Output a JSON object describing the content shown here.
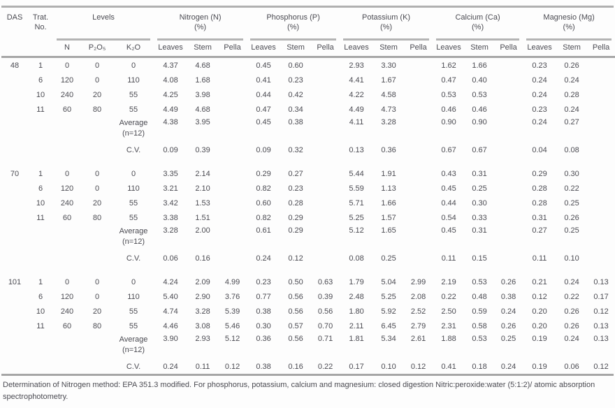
{
  "table": {
    "header": {
      "das": "DAS",
      "trat_line1": "Trat.",
      "trat_line2": "No.",
      "groups": [
        {
          "label": "Levels",
          "pct": "",
          "subs": [
            "N",
            "P₂O₅",
            "K₂O"
          ]
        },
        {
          "label": "Nitrogen (N)",
          "pct": "(%)",
          "subs": [
            "Leaves",
            "Stem",
            "Pella"
          ]
        },
        {
          "label": "Phosphorus (P)",
          "pct": "(%)",
          "subs": [
            "Leaves",
            "Stem",
            "Pella"
          ]
        },
        {
          "label": "Potassium (K)",
          "pct": "(%)",
          "subs": [
            "Leaves",
            "Stem",
            "Pella"
          ]
        },
        {
          "label": "Calcium (Ca)",
          "pct": "(%)",
          "subs": [
            "Leaves",
            "Stem",
            "Pella"
          ]
        },
        {
          "label": "Magnesio (Mg)",
          "pct": "(%)",
          "subs": [
            "Leaves",
            "Stem",
            "Pella"
          ]
        }
      ]
    },
    "sections": [
      {
        "das": "48",
        "rows": [
          {
            "trat": "1",
            "levels": [
              "0",
              "0",
              "0"
            ],
            "values": [
              "4.37",
              "4.68",
              "",
              "0.45",
              "0.60",
              "",
              "2.93",
              "3.30",
              "",
              "1.62",
              "1.66",
              "",
              "0.23",
              "0.26",
              ""
            ]
          },
          {
            "trat": "6",
            "levels": [
              "120",
              "0",
              "110"
            ],
            "values": [
              "4.08",
              "1.68",
              "",
              "0.41",
              "0.23",
              "",
              "4.41",
              "1.67",
              "",
              "0.47",
              "0.40",
              "",
              "0.24",
              "0.24",
              ""
            ]
          },
          {
            "trat": "10",
            "levels": [
              "240",
              "20",
              "55"
            ],
            "values": [
              "4.25",
              "3.98",
              "",
              "0.44",
              "0.42",
              "",
              "4.22",
              "4.58",
              "",
              "0.53",
              "0.53",
              "",
              "0.24",
              "0.28",
              ""
            ]
          },
          {
            "trat": "11",
            "levels": [
              "60",
              "80",
              "55"
            ],
            "values": [
              "4.49",
              "4.68",
              "",
              "0.47",
              "0.34",
              "",
              "4.49",
              "4.73",
              "",
              "0.46",
              "0.46",
              "",
              "0.23",
              "0.24",
              ""
            ]
          }
        ],
        "average_label": "Average",
        "average_sub": "(n=12)",
        "average": [
          "4.38",
          "3.95",
          "",
          "0.45",
          "0.38",
          "",
          "4.11",
          "3.28",
          "",
          "0.90",
          "0.90",
          "",
          "0.24",
          "0.27",
          ""
        ],
        "cv_label": "C.V.",
        "cv": [
          "0.09",
          "0.39",
          "",
          "0.09",
          "0.32",
          "",
          "0.13",
          "0.36",
          "",
          "0.67",
          "0.67",
          "",
          "0.04",
          "0.08",
          ""
        ]
      },
      {
        "das": "70",
        "rows": [
          {
            "trat": "1",
            "levels": [
              "0",
              "0",
              "0"
            ],
            "values": [
              "3.35",
              "2.14",
              "",
              "0.29",
              "0.27",
              "",
              "5.44",
              "1.91",
              "",
              "0.43",
              "0.31",
              "",
              "0.29",
              "0.30",
              ""
            ]
          },
          {
            "trat": "6",
            "levels": [
              "120",
              "0",
              "110"
            ],
            "values": [
              "3.21",
              "2.10",
              "",
              "0.82",
              "0.23",
              "",
              "5.59",
              "1.13",
              "",
              "0.45",
              "0.25",
              "",
              "0.28",
              "0.22",
              ""
            ]
          },
          {
            "trat": "10",
            "levels": [
              "240",
              "20",
              "55"
            ],
            "values": [
              "3.42",
              "1.53",
              "",
              "0.60",
              "0.28",
              "",
              "5.71",
              "1.66",
              "",
              "0.44",
              "0.30",
              "",
              "0.28",
              "0.25",
              ""
            ]
          },
          {
            "trat": "11",
            "levels": [
              "60",
              "80",
              "55"
            ],
            "values": [
              "3.38",
              "1.51",
              "",
              "0.82",
              "0.29",
              "",
              "5.25",
              "1.57",
              "",
              "0.54",
              "0.33",
              "",
              "0.31",
              "0.26",
              ""
            ]
          }
        ],
        "average_label": "Average",
        "average_sub": "(n=12)",
        "average": [
          "3.28",
          "2.00",
          "",
          "0.61",
          "0.29",
          "",
          "5.12",
          "1.65",
          "",
          "0.45",
          "0.31",
          "",
          "0.27",
          "0.25",
          ""
        ],
        "cv_label": "C.V.",
        "cv": [
          "0.06",
          "0.16",
          "",
          "0.24",
          "0.12",
          "",
          "0.08",
          "0.25",
          "",
          "0.11",
          "0.15",
          "",
          "0.11",
          "0.10",
          ""
        ]
      },
      {
        "das": "101",
        "rows": [
          {
            "trat": "1",
            "levels": [
              "0",
              "0",
              "0"
            ],
            "values": [
              "4.24",
              "2.09",
              "4.99",
              "0.23",
              "0.50",
              "0.63",
              "1.79",
              "5.04",
              "2.99",
              "2.19",
              "0.53",
              "0.26",
              "0.21",
              "0.24",
              "0.13"
            ]
          },
          {
            "trat": "6",
            "levels": [
              "120",
              "0",
              "110"
            ],
            "values": [
              "5.40",
              "2.90",
              "3.76",
              "0.77",
              "0.56",
              "0.39",
              "2.48",
              "5.25",
              "2.08",
              "0.22",
              "0.48",
              "0.38",
              "0.12",
              "0.22",
              "0.17"
            ]
          },
          {
            "trat": "10",
            "levels": [
              "240",
              "20",
              "55"
            ],
            "values": [
              "4.74",
              "3.28",
              "5.39",
              "0.38",
              "0.56",
              "0.56",
              "1.80",
              "5.92",
              "2.52",
              "2.50",
              "0.59",
              "0.24",
              "0.20",
              "0.26",
              "0.12"
            ]
          },
          {
            "trat": "11",
            "levels": [
              "60",
              "80",
              "55"
            ],
            "values": [
              "4.46",
              "3.08",
              "5.46",
              "0.30",
              "0.57",
              "0.70",
              "2.11",
              "6.45",
              "2.79",
              "2.31",
              "0.58",
              "0.26",
              "0.20",
              "0.26",
              "0.13"
            ]
          }
        ],
        "average_label": "Average",
        "average_sub": "(n=12)",
        "average": [
          "3.90",
          "2.93",
          "5.12",
          "0.36",
          "0.56",
          "0.71",
          "1.81",
          "5.34",
          "2.61",
          "1.88",
          "0.53",
          "0.25",
          "0.19",
          "0.24",
          "0.13"
        ],
        "cv_label": "C.V.",
        "cv": [
          "0.24",
          "0.11",
          "0.12",
          "0.38",
          "0.16",
          "0.22",
          "0.17",
          "0.10",
          "0.12",
          "0.41",
          "0.18",
          "0.24",
          "0.19",
          "0.06",
          "0.12"
        ]
      }
    ]
  },
  "footnote": "Determination of Nitrogen method: EPA 351.3 modified. For phosphorus, potassium, calcium and magnesium: closed digestion Nitric:peroxide:water (5:1:2)/ atomic absorption spectrophotometry."
}
